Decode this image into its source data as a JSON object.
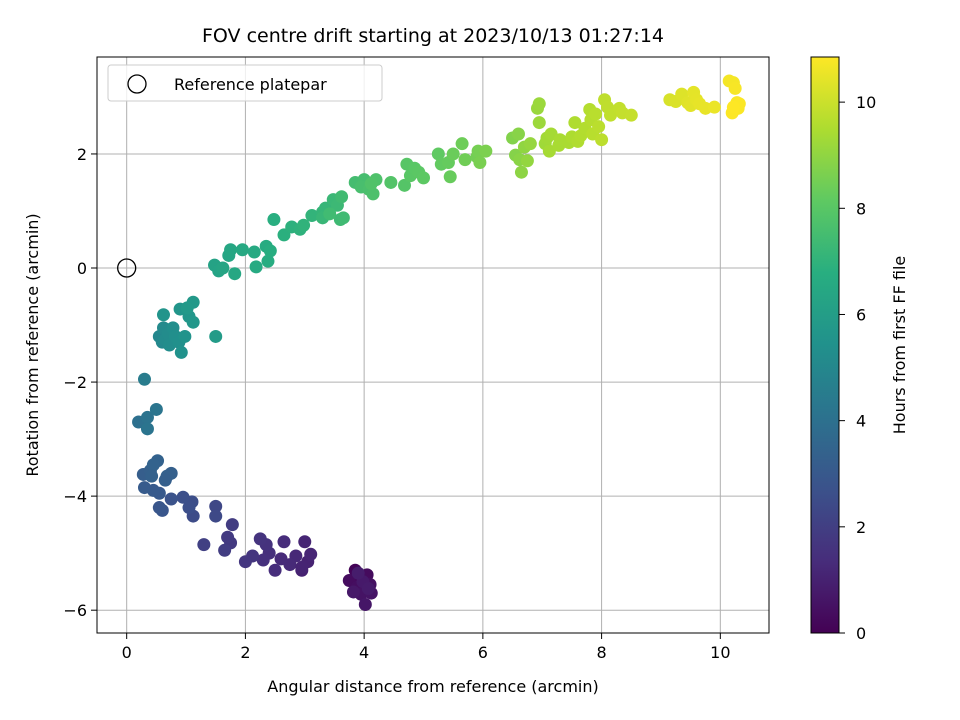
{
  "chart_data": {
    "type": "scatter",
    "title": "FOV centre drift starting at 2023/10/13 01:27:14",
    "xlabel": "Angular distance from reference (arcmin)",
    "ylabel": "Rotation from reference (arcmin)",
    "xlim": [
      -0.5,
      10.82
    ],
    "ylim": [
      -6.4,
      3.7
    ],
    "x_ticks": [
      0,
      2,
      4,
      6,
      8,
      10
    ],
    "x_tick_labels": [
      "0",
      "2",
      "4",
      "6",
      "8",
      "10"
    ],
    "y_ticks": [
      -6,
      -4,
      -2,
      0,
      2
    ],
    "y_tick_labels": [
      "−6",
      "−4",
      "−2",
      "0",
      "2"
    ],
    "grid": true,
    "legend": {
      "position": "upper-left",
      "entries": [
        "Reference platepar"
      ]
    },
    "reference_point": {
      "x": 0,
      "y": 0,
      "label": "Reference platepar"
    },
    "colorbar": {
      "label": "Hours from first FF file",
      "colormap": "viridis",
      "range": [
        0,
        10.85
      ],
      "ticks": [
        0,
        2,
        4,
        6,
        8,
        10
      ],
      "tick_labels": [
        "0",
        "2",
        "4",
        "6",
        "8",
        "10"
      ]
    },
    "points": [
      {
        "x": 3.85,
        "y": -5.3,
        "t": 0.1
      },
      {
        "x": 3.92,
        "y": -5.45,
        "t": 0.2
      },
      {
        "x": 4.05,
        "y": -5.38,
        "t": 0.3
      },
      {
        "x": 3.75,
        "y": -5.48,
        "t": 0.35
      },
      {
        "x": 3.88,
        "y": -5.6,
        "t": 0.4
      },
      {
        "x": 4.1,
        "y": -5.55,
        "t": 0.5
      },
      {
        "x": 3.95,
        "y": -5.72,
        "t": 0.55
      },
      {
        "x": 4.12,
        "y": -5.7,
        "t": 0.6
      },
      {
        "x": 4.02,
        "y": -5.9,
        "t": 0.65
      },
      {
        "x": 3.82,
        "y": -5.68,
        "t": 0.7
      },
      {
        "x": 3.98,
        "y": -5.5,
        "t": 0.75
      },
      {
        "x": 4.07,
        "y": -5.62,
        "t": 0.8
      },
      {
        "x": 3.9,
        "y": -5.35,
        "t": 0.85
      },
      {
        "x": 2.95,
        "y": -5.3,
        "t": 1.0
      },
      {
        "x": 3.05,
        "y": -5.15,
        "t": 1.05
      },
      {
        "x": 3.0,
        "y": -4.8,
        "t": 1.1
      },
      {
        "x": 3.1,
        "y": -5.02,
        "t": 1.15
      },
      {
        "x": 2.85,
        "y": -5.05,
        "t": 1.2
      },
      {
        "x": 2.75,
        "y": -5.2,
        "t": 1.25
      },
      {
        "x": 2.6,
        "y": -5.1,
        "t": 1.3
      },
      {
        "x": 2.65,
        "y": -4.8,
        "t": 1.35
      },
      {
        "x": 2.5,
        "y": -5.3,
        "t": 1.4
      },
      {
        "x": 2.4,
        "y": -5.0,
        "t": 1.45
      },
      {
        "x": 2.3,
        "y": -5.12,
        "t": 1.5
      },
      {
        "x": 2.35,
        "y": -4.85,
        "t": 1.55
      },
      {
        "x": 2.25,
        "y": -4.75,
        "t": 1.6
      },
      {
        "x": 2.12,
        "y": -5.05,
        "t": 1.65
      },
      {
        "x": 2.0,
        "y": -5.15,
        "t": 1.7
      },
      {
        "x": 1.75,
        "y": -4.82,
        "t": 1.8
      },
      {
        "x": 1.7,
        "y": -4.72,
        "t": 1.85
      },
      {
        "x": 1.78,
        "y": -4.5,
        "t": 1.9
      },
      {
        "x": 1.65,
        "y": -4.95,
        "t": 1.95
      },
      {
        "x": 1.3,
        "y": -4.85,
        "t": 2.05
      },
      {
        "x": 2.95,
        "y": -5.25,
        "t": 1.08
      },
      {
        "x": 1.5,
        "y": -4.18,
        "t": 2.3
      },
      {
        "x": 1.5,
        "y": -4.35,
        "t": 2.4
      },
      {
        "x": 1.12,
        "y": -4.35,
        "t": 2.5
      },
      {
        "x": 1.1,
        "y": -4.1,
        "t": 2.55
      },
      {
        "x": 0.95,
        "y": -4.02,
        "t": 2.65
      },
      {
        "x": 1.05,
        "y": -4.2,
        "t": 2.6
      },
      {
        "x": 0.75,
        "y": -4.05,
        "t": 2.75
      },
      {
        "x": 0.6,
        "y": -4.25,
        "t": 2.85
      },
      {
        "x": 0.55,
        "y": -4.2,
        "t": 2.9
      },
      {
        "x": 0.55,
        "y": -3.95,
        "t": 3.0
      },
      {
        "x": 0.45,
        "y": -3.9,
        "t": 3.05
      },
      {
        "x": 0.3,
        "y": -3.85,
        "t": 3.1
      },
      {
        "x": 0.28,
        "y": -3.62,
        "t": 3.2
      },
      {
        "x": 0.4,
        "y": -3.55,
        "t": 3.3
      },
      {
        "x": 0.52,
        "y": -3.38,
        "t": 3.4
      },
      {
        "x": 0.45,
        "y": -3.45,
        "t": 3.45
      },
      {
        "x": 0.68,
        "y": -3.65,
        "t": 3.35
      },
      {
        "x": 0.75,
        "y": -3.6,
        "t": 3.3
      },
      {
        "x": 0.65,
        "y": -3.72,
        "t": 3.25
      },
      {
        "x": 0.42,
        "y": -3.65,
        "t": 3.35
      },
      {
        "x": 0.2,
        "y": -2.7,
        "t": 4.0
      },
      {
        "x": 0.35,
        "y": -2.62,
        "t": 4.1
      },
      {
        "x": 0.35,
        "y": -2.82,
        "t": 4.15
      },
      {
        "x": 0.5,
        "y": -2.48,
        "t": 4.2
      },
      {
        "x": 0.3,
        "y": -1.95,
        "t": 4.5
      },
      {
        "x": 0.55,
        "y": -1.2,
        "t": 5.0
      },
      {
        "x": 0.6,
        "y": -1.3,
        "t": 5.05
      },
      {
        "x": 0.62,
        "y": -1.05,
        "t": 5.1
      },
      {
        "x": 0.65,
        "y": -1.25,
        "t": 5.15
      },
      {
        "x": 0.7,
        "y": -1.15,
        "t": 5.2
      },
      {
        "x": 0.72,
        "y": -1.35,
        "t": 5.25
      },
      {
        "x": 0.78,
        "y": -1.05,
        "t": 5.3
      },
      {
        "x": 0.82,
        "y": -1.2,
        "t": 5.35
      },
      {
        "x": 0.88,
        "y": -1.3,
        "t": 5.4
      },
      {
        "x": 0.92,
        "y": -1.48,
        "t": 5.45
      },
      {
        "x": 0.98,
        "y": -1.2,
        "t": 5.5
      },
      {
        "x": 0.62,
        "y": -0.82,
        "t": 5.55
      },
      {
        "x": 0.9,
        "y": -0.72,
        "t": 5.6
      },
      {
        "x": 1.05,
        "y": -0.85,
        "t": 5.65
      },
      {
        "x": 1.12,
        "y": -0.95,
        "t": 5.7
      },
      {
        "x": 1.12,
        "y": -0.6,
        "t": 5.75
      },
      {
        "x": 1.02,
        "y": -0.7,
        "t": 5.8
      },
      {
        "x": 1.5,
        "y": -1.2,
        "t": 5.9
      },
      {
        "x": 1.48,
        "y": 0.05,
        "t": 6.2
      },
      {
        "x": 1.55,
        "y": -0.05,
        "t": 6.25
      },
      {
        "x": 1.62,
        "y": 0.0,
        "t": 6.3
      },
      {
        "x": 1.72,
        "y": 0.22,
        "t": 6.35
      },
      {
        "x": 1.75,
        "y": 0.32,
        "t": 6.4
      },
      {
        "x": 1.82,
        "y": -0.1,
        "t": 6.45
      },
      {
        "x": 1.95,
        "y": 0.32,
        "t": 6.5
      },
      {
        "x": 2.15,
        "y": 0.28,
        "t": 6.55
      },
      {
        "x": 2.18,
        "y": 0.02,
        "t": 6.6
      },
      {
        "x": 2.35,
        "y": 0.38,
        "t": 6.65
      },
      {
        "x": 2.38,
        "y": 0.12,
        "t": 6.7
      },
      {
        "x": 2.42,
        "y": 0.3,
        "t": 6.75
      },
      {
        "x": 2.48,
        "y": 0.85,
        "t": 6.8
      },
      {
        "x": 2.65,
        "y": 0.58,
        "t": 6.85
      },
      {
        "x": 2.78,
        "y": 0.72,
        "t": 6.9
      },
      {
        "x": 2.92,
        "y": 0.68,
        "t": 6.95
      },
      {
        "x": 2.98,
        "y": 0.75,
        "t": 7.0
      },
      {
        "x": 3.12,
        "y": 0.92,
        "t": 7.05
      },
      {
        "x": 3.3,
        "y": 0.98,
        "t": 7.1
      },
      {
        "x": 3.35,
        "y": 1.05,
        "t": 7.15
      },
      {
        "x": 3.3,
        "y": 0.88,
        "t": 7.2
      },
      {
        "x": 3.48,
        "y": 1.2,
        "t": 7.25
      },
      {
        "x": 3.55,
        "y": 1.1,
        "t": 7.3
      },
      {
        "x": 3.6,
        "y": 0.85,
        "t": 7.35
      },
      {
        "x": 3.65,
        "y": 0.88,
        "t": 7.38
      },
      {
        "x": 3.62,
        "y": 1.25,
        "t": 7.4
      },
      {
        "x": 3.42,
        "y": 0.95,
        "t": 7.42
      },
      {
        "x": 3.85,
        "y": 1.5,
        "t": 7.5
      },
      {
        "x": 4.0,
        "y": 1.55,
        "t": 7.55
      },
      {
        "x": 3.95,
        "y": 1.42,
        "t": 7.6
      },
      {
        "x": 4.08,
        "y": 1.38,
        "t": 7.65
      },
      {
        "x": 4.15,
        "y": 1.3,
        "t": 7.7
      },
      {
        "x": 4.2,
        "y": 1.55,
        "t": 7.75
      },
      {
        "x": 4.12,
        "y": 1.48,
        "t": 7.8
      },
      {
        "x": 4.45,
        "y": 1.5,
        "t": 7.85
      },
      {
        "x": 4.68,
        "y": 1.45,
        "t": 7.9
      },
      {
        "x": 4.72,
        "y": 1.82,
        "t": 7.95
      },
      {
        "x": 4.78,
        "y": 1.62,
        "t": 8.0
      },
      {
        "x": 4.85,
        "y": 1.75,
        "t": 8.02
      },
      {
        "x": 4.92,
        "y": 1.68,
        "t": 8.05
      },
      {
        "x": 5.0,
        "y": 1.58,
        "t": 8.08
      },
      {
        "x": 5.25,
        "y": 2.0,
        "t": 8.15
      },
      {
        "x": 5.3,
        "y": 1.82,
        "t": 8.2
      },
      {
        "x": 5.42,
        "y": 1.85,
        "t": 8.25
      },
      {
        "x": 5.45,
        "y": 1.6,
        "t": 8.3
      },
      {
        "x": 5.5,
        "y": 2.0,
        "t": 8.35
      },
      {
        "x": 5.65,
        "y": 2.18,
        "t": 8.4
      },
      {
        "x": 5.7,
        "y": 1.9,
        "t": 8.45
      },
      {
        "x": 5.9,
        "y": 1.95,
        "t": 8.5
      },
      {
        "x": 5.92,
        "y": 2.05,
        "t": 8.55
      },
      {
        "x": 5.95,
        "y": 1.85,
        "t": 8.6
      },
      {
        "x": 6.05,
        "y": 2.05,
        "t": 8.65
      },
      {
        "x": 6.5,
        "y": 2.28,
        "t": 8.75
      },
      {
        "x": 6.55,
        "y": 1.98,
        "t": 8.8
      },
      {
        "x": 6.6,
        "y": 2.35,
        "t": 8.85
      },
      {
        "x": 6.62,
        "y": 1.9,
        "t": 8.9
      },
      {
        "x": 6.65,
        "y": 1.68,
        "t": 8.95
      },
      {
        "x": 6.7,
        "y": 2.12,
        "t": 9.0
      },
      {
        "x": 6.75,
        "y": 1.88,
        "t": 9.05
      },
      {
        "x": 6.8,
        "y": 2.18,
        "t": 9.1
      },
      {
        "x": 6.92,
        "y": 2.8,
        "t": 9.15
      },
      {
        "x": 6.95,
        "y": 2.88,
        "t": 9.18
      },
      {
        "x": 6.95,
        "y": 2.55,
        "t": 9.2
      },
      {
        "x": 7.05,
        "y": 2.18,
        "t": 9.25
      },
      {
        "x": 7.08,
        "y": 2.28,
        "t": 9.3
      },
      {
        "x": 7.15,
        "y": 2.35,
        "t": 9.35
      },
      {
        "x": 7.12,
        "y": 2.05,
        "t": 9.38
      },
      {
        "x": 7.28,
        "y": 2.15,
        "t": 9.4
      },
      {
        "x": 7.3,
        "y": 2.25,
        "t": 9.42
      },
      {
        "x": 7.45,
        "y": 2.2,
        "t": 9.45
      },
      {
        "x": 7.5,
        "y": 2.3,
        "t": 9.5
      },
      {
        "x": 7.55,
        "y": 2.55,
        "t": 9.52
      },
      {
        "x": 7.6,
        "y": 2.22,
        "t": 9.55
      },
      {
        "x": 7.65,
        "y": 2.32,
        "t": 9.58
      },
      {
        "x": 7.72,
        "y": 2.45,
        "t": 9.6
      },
      {
        "x": 7.8,
        "y": 2.78,
        "t": 9.62
      },
      {
        "x": 7.82,
        "y": 2.6,
        "t": 9.65
      },
      {
        "x": 7.85,
        "y": 2.35,
        "t": 9.68
      },
      {
        "x": 7.9,
        "y": 2.7,
        "t": 9.7
      },
      {
        "x": 7.95,
        "y": 2.48,
        "t": 9.72
      },
      {
        "x": 8.0,
        "y": 2.25,
        "t": 9.75
      },
      {
        "x": 8.05,
        "y": 2.95,
        "t": 9.78
      },
      {
        "x": 8.1,
        "y": 2.82,
        "t": 9.8
      },
      {
        "x": 8.15,
        "y": 2.68,
        "t": 9.82
      },
      {
        "x": 8.3,
        "y": 2.8,
        "t": 9.85
      },
      {
        "x": 8.35,
        "y": 2.72,
        "t": 9.88
      },
      {
        "x": 8.5,
        "y": 2.68,
        "t": 9.9
      },
      {
        "x": 9.15,
        "y": 2.95,
        "t": 10.2
      },
      {
        "x": 9.25,
        "y": 2.92,
        "t": 10.25
      },
      {
        "x": 9.35,
        "y": 3.05,
        "t": 10.3
      },
      {
        "x": 9.45,
        "y": 2.9,
        "t": 10.35
      },
      {
        "x": 9.5,
        "y": 2.85,
        "t": 10.4
      },
      {
        "x": 9.55,
        "y": 3.08,
        "t": 10.42
      },
      {
        "x": 9.6,
        "y": 2.95,
        "t": 10.45
      },
      {
        "x": 9.65,
        "y": 2.88,
        "t": 10.48
      },
      {
        "x": 9.75,
        "y": 2.8,
        "t": 10.5
      },
      {
        "x": 9.9,
        "y": 2.82,
        "t": 10.55
      },
      {
        "x": 10.15,
        "y": 3.28,
        "t": 10.7
      },
      {
        "x": 10.22,
        "y": 3.25,
        "t": 10.72
      },
      {
        "x": 10.25,
        "y": 3.15,
        "t": 10.75
      },
      {
        "x": 10.28,
        "y": 2.9,
        "t": 10.78
      },
      {
        "x": 10.3,
        "y": 2.8,
        "t": 10.8
      },
      {
        "x": 10.32,
        "y": 2.88,
        "t": 10.82
      },
      {
        "x": 10.2,
        "y": 2.72,
        "t": 10.84
      },
      {
        "x": 10.22,
        "y": 2.82,
        "t": 10.85
      }
    ]
  }
}
